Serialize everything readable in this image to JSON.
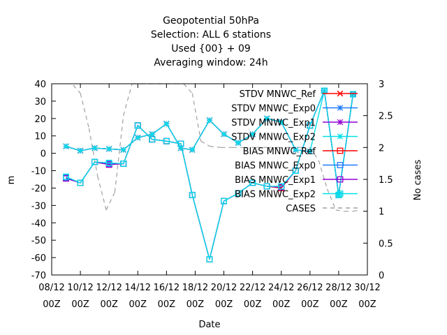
{
  "chart_data": {
    "type": "line",
    "title_lines": [
      "Geopotential 50hPa",
      "Selection: ALL      6 stations",
      "Used {00} + 09",
      "Averaging window: 24h"
    ],
    "xlabel": "Date",
    "ylabel": "m",
    "y2label": "No cases",
    "ylim": [
      -70,
      40
    ],
    "y2lim": [
      0,
      3
    ],
    "xlim": [
      0,
      22
    ],
    "x_ticks": [
      {
        "pos": 0,
        "top": "08/12",
        "bottom": "00Z"
      },
      {
        "pos": 2,
        "top": "10/12",
        "bottom": "00Z"
      },
      {
        "pos": 4,
        "top": "12/12",
        "bottom": "00Z"
      },
      {
        "pos": 6,
        "top": "14/12",
        "bottom": "00Z"
      },
      {
        "pos": 8,
        "top": "16/12",
        "bottom": "00Z"
      },
      {
        "pos": 10,
        "top": "18/12",
        "bottom": "00Z"
      },
      {
        "pos": 12,
        "top": "20/12",
        "bottom": "00Z"
      },
      {
        "pos": 14,
        "top": "22/12",
        "bottom": "00Z"
      },
      {
        "pos": 16,
        "top": "24/12",
        "bottom": "00Z"
      },
      {
        "pos": 18,
        "top": "26/12",
        "bottom": "00Z"
      },
      {
        "pos": 20,
        "top": "28/12",
        "bottom": "00Z"
      },
      {
        "pos": 22,
        "top": "30/12",
        "bottom": "00Z"
      }
    ],
    "y_ticks": [
      40,
      30,
      20,
      10,
      0,
      -10,
      -20,
      -30,
      -40,
      -50,
      -60,
      -70
    ],
    "y2_ticks": [
      "3",
      "2.5",
      "2",
      "1.5",
      "1",
      "0.5",
      "0"
    ],
    "x": [
      1.0,
      2.0,
      3.0,
      4.0,
      5.0,
      6.0,
      7.0,
      8.0,
      9.0,
      9.8,
      11.0,
      12.0,
      13.0,
      14.0,
      15.0,
      16.0,
      17.0,
      18.0,
      19.0,
      20.0,
      21.0
    ],
    "series": [
      {
        "name": "STDV MNWC_Ref",
        "axis": "y",
        "color": "#ff0000",
        "marker": "x",
        "values": [
          4,
          1.5,
          3,
          2.5,
          2,
          9,
          11,
          17,
          3,
          2,
          19,
          11,
          6,
          11,
          20,
          18,
          2,
          1,
          null,
          null,
          34
        ]
      },
      {
        "name": "STDV MNWC_Exp0",
        "axis": "y",
        "color": "#1e7bff",
        "marker": "star",
        "values": [
          4,
          1.5,
          3,
          2.5,
          2,
          9,
          11,
          17,
          3,
          2,
          19,
          11,
          6,
          11,
          20,
          18,
          2,
          1,
          null,
          null,
          34
        ]
      },
      {
        "name": "STDV MNWC_Exp1",
        "axis": "y",
        "color": "#9400d3",
        "marker": "star",
        "values": [
          4,
          1.5,
          3,
          2.5,
          2,
          9,
          11,
          17,
          3,
          2,
          19,
          11,
          6,
          11,
          20,
          18,
          2,
          1,
          null,
          null,
          34
        ]
      },
      {
        "name": "STDV MNWC_Exp2",
        "axis": "y",
        "color": "#00e0e8",
        "marker": "star",
        "values": [
          4,
          1.5,
          3,
          2.5,
          2,
          9,
          11,
          17,
          3,
          2,
          19,
          11,
          6,
          11,
          20,
          18,
          2,
          1,
          36,
          -24,
          34
        ]
      },
      {
        "name": "BIAS MNWC_Ref",
        "axis": "y",
        "color": "#ff0000",
        "marker": "square",
        "values": [
          -14,
          -17,
          -5,
          -6.5,
          -6,
          16,
          8,
          7,
          5.5,
          -24,
          -61,
          -27.5,
          -23,
          -17,
          -19,
          -20,
          -10,
          16,
          36,
          -24,
          34
        ]
      },
      {
        "name": "BIAS MNWC_Exp0",
        "axis": "y",
        "color": "#1e7bff",
        "marker": "square",
        "values": [
          -14,
          -17,
          -5,
          -6,
          -6,
          16,
          8,
          7,
          5.5,
          -24,
          -61,
          -27.5,
          -23,
          -17,
          -19,
          -19.5,
          -10,
          16,
          36,
          -24,
          34
        ]
      },
      {
        "name": "BIAS MNWC_Exp1",
        "axis": "y",
        "color": "#9400d3",
        "marker": "square",
        "values": [
          -14.5,
          -17,
          -5,
          -6.5,
          -6,
          16,
          8,
          7,
          5.5,
          -24,
          -61,
          -27.5,
          -23,
          -17,
          -19,
          -19.5,
          -10,
          16,
          36,
          -24,
          34
        ]
      },
      {
        "name": "BIAS MNWC_Exp2",
        "axis": "y",
        "color": "#00e0e8",
        "marker": "square",
        "values": [
          -13.5,
          -17,
          -5,
          -5.5,
          -6,
          16,
          8,
          7,
          5.5,
          -24,
          -61,
          -27.5,
          -23,
          -17,
          -19,
          -19,
          -10,
          16,
          36,
          -24,
          34
        ]
      }
    ],
    "cases": {
      "name": "CASES",
      "axis": "y2",
      "color": "#a0a0a0",
      "x": [
        1.5,
        2.0,
        2.6,
        3.2,
        3.8,
        4.4,
        5.0,
        5.6,
        6.2,
        6.8,
        7.4,
        8.0,
        8.6,
        9.2,
        9.8,
        10.4,
        11.0,
        11.8,
        12.6,
        13.4,
        14.2,
        15.0,
        15.8,
        16.6,
        17.4,
        18.0,
        18.6,
        19.2,
        19.8,
        20.4,
        21.0,
        21.5
      ],
      "values": [
        2.98,
        2.85,
        2.3,
        1.55,
        1.02,
        1.3,
        2.5,
        3.0,
        3.0,
        3.0,
        3.0,
        3.0,
        3.0,
        3.0,
        2.85,
        2.1,
        2.02,
        2.0,
        2.0,
        2.0,
        2.0,
        2.0,
        2.0,
        2.0,
        2.0,
        2.0,
        1.8,
        1.35,
        1.02,
        1.0,
        1.0,
        1.02
      ]
    },
    "legend": {
      "position": "top-right",
      "entries": [
        {
          "label": "STDV MNWC_Ref",
          "color": "#ff0000",
          "marker": "x",
          "dashed": false
        },
        {
          "label": "STDV MNWC_Exp0",
          "color": "#1e7bff",
          "marker": "star",
          "dashed": false
        },
        {
          "label": "STDV MNWC_Exp1",
          "color": "#9400d3",
          "marker": "star",
          "dashed": false
        },
        {
          "label": "STDV MNWC_Exp2",
          "color": "#00e0e8",
          "marker": "star",
          "dashed": false
        },
        {
          "label": "BIAS MNWC_Ref",
          "color": "#ff0000",
          "marker": "square",
          "dashed": false
        },
        {
          "label": "BIAS MNWC_Exp0",
          "color": "#1e7bff",
          "marker": "square",
          "dashed": false
        },
        {
          "label": "BIAS MNWC_Exp1",
          "color": "#9400d3",
          "marker": "square",
          "dashed": false
        },
        {
          "label": "BIAS MNWC_Exp2",
          "color": "#00e0e8",
          "marker": "square",
          "dashed": false
        },
        {
          "label": "CASES",
          "color": "#a0a0a0",
          "marker": "none",
          "dashed": true
        }
      ]
    },
    "grid": false
  }
}
